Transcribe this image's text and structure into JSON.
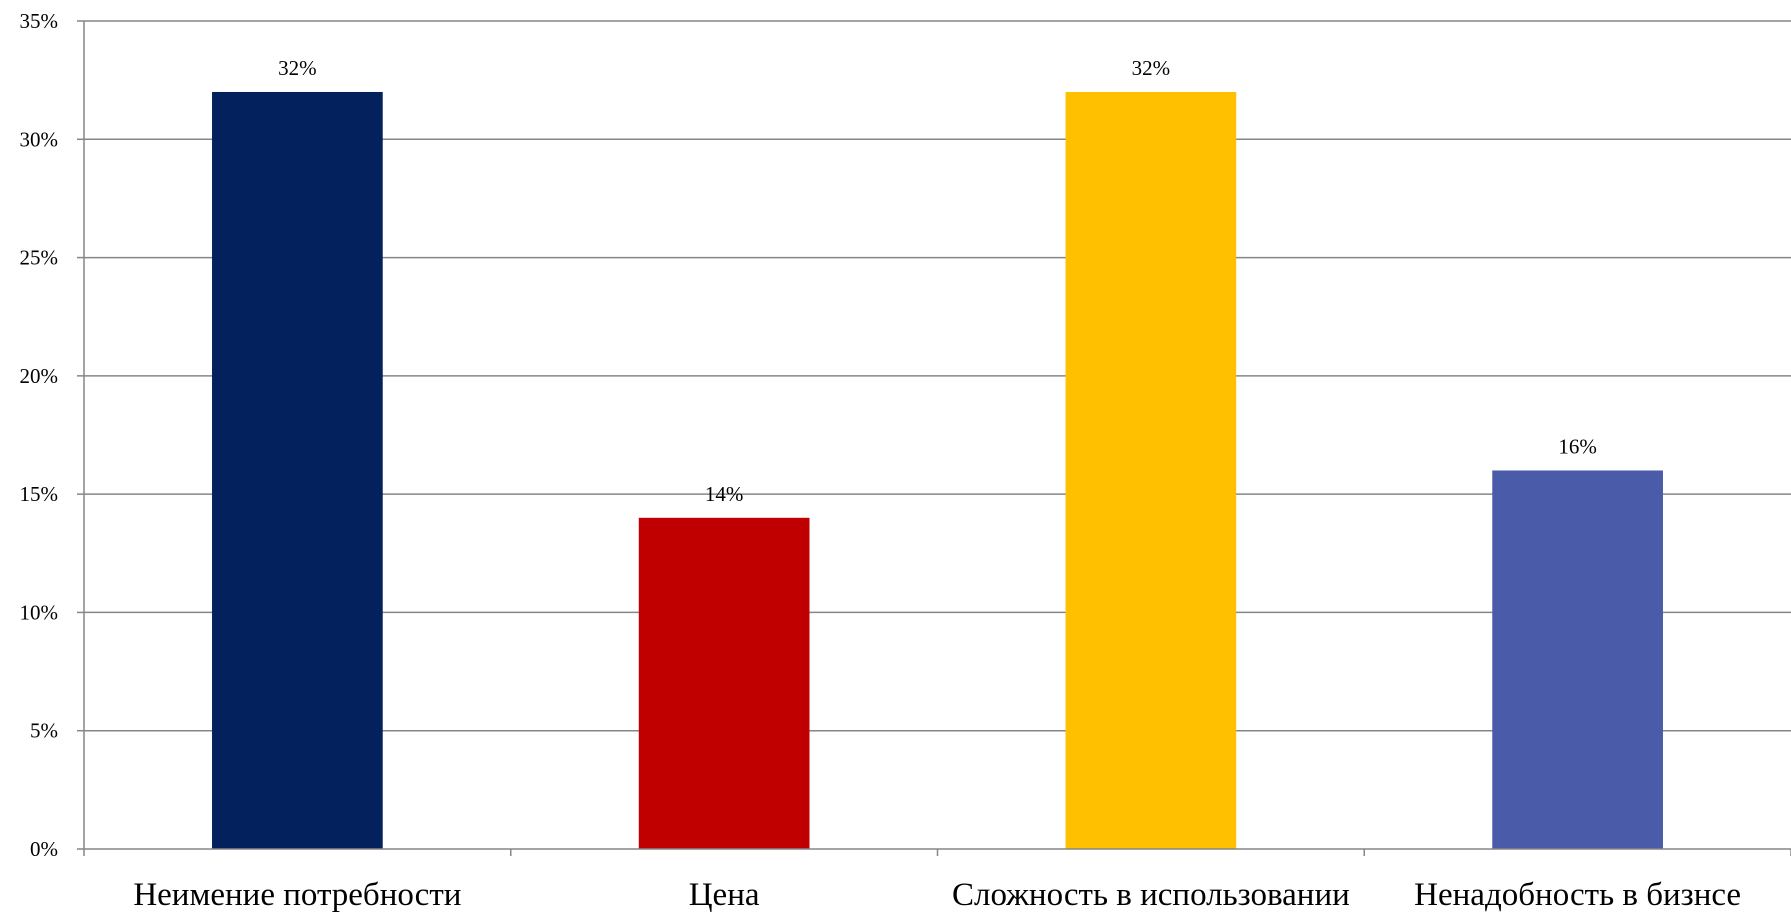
{
  "chart_data": {
    "type": "bar",
    "categories": [
      "Неимение потребности",
      "Цена",
      "Сложность в использовании",
      "Ненадобность в бизнсе"
    ],
    "values": [
      32,
      14,
      32,
      16
    ],
    "data_labels": [
      "32%",
      "14%",
      "32%",
      "16%"
    ],
    "colors": [
      "#03215C",
      "#C00000",
      "#FFC000",
      "#4A5BAA"
    ],
    "ylim": [
      0,
      35
    ],
    "yticks": [
      0,
      5,
      10,
      15,
      20,
      25,
      30,
      35
    ],
    "ytick_labels": [
      "0%",
      "5%",
      "10%",
      "15%",
      "20%",
      "25%",
      "30%",
      "35%"
    ],
    "grid": true,
    "legend": "none"
  }
}
